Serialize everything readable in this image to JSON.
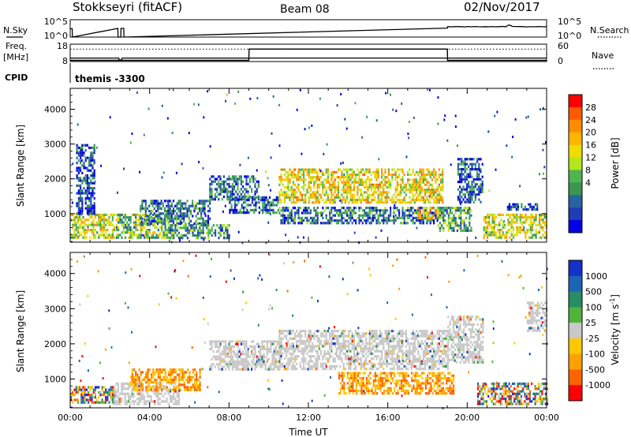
{
  "header": {
    "station": "Stokkseyri (fitACF)",
    "beam": "Beam 08",
    "date": "02/Nov/2017",
    "cpid_label": "CPID",
    "cpid_value": "themis -3300"
  },
  "colors": {
    "ground_scatter": "#c8c8c8",
    "trace": "#000000",
    "frame": "#000000"
  },
  "chart_data": [
    {
      "type": "line",
      "panel": "noise",
      "labels": {
        "left": "N.Sky",
        "right": "N.Search"
      },
      "y_ticks_left": [
        "10^5",
        "10^0"
      ],
      "y_ticks_right": [
        "10^5",
        "10^0"
      ],
      "ylim_log": [
        0,
        5
      ],
      "xlim_hours": [
        0,
        24
      ],
      "series": [
        {
          "key": "nsky",
          "style": "solid",
          "x": [
            0,
            0.1,
            0.11,
            2.4,
            2.41,
            2.55,
            2.56,
            2.7,
            2.71,
            19.0,
            19.01,
            24
          ],
          "y": [
            2.4,
            2.4,
            0.0,
            2.5,
            0.0,
            0.0,
            2.5,
            2.5,
            0.0,
            2.6,
            3.0,
            3.0
          ]
        }
      ]
    },
    {
      "type": "line",
      "panel": "frequency",
      "labels": {
        "left_top": "Freq.",
        "left_unit": "[MHz]",
        "right": "Nave"
      },
      "y_ticks_left": [
        "18",
        "8"
      ],
      "y_ticks_right": [
        "60",
        "0"
      ],
      "ylim": [
        8,
        18
      ],
      "xlim_hours": [
        0,
        24
      ],
      "series": [
        {
          "key": "frequency",
          "style": "solid",
          "x": [
            0,
            2.45,
            2.46,
            2.6,
            2.61,
            24
          ],
          "y": [
            10.0,
            10.0,
            9.0,
            9.0,
            10.0,
            10.0
          ]
        },
        {
          "key": "nave",
          "style": "solid",
          "x": [
            0,
            9.0,
            9.01,
            19.0,
            19.01,
            24
          ],
          "y": [
            8.7,
            8.7,
            15.2,
            15.2,
            8.7,
            8.7
          ]
        },
        {
          "key": "reference",
          "style": "dotted",
          "x": [
            0,
            24
          ],
          "y": [
            15.2,
            15.2
          ]
        }
      ]
    },
    {
      "type": "heatmap",
      "panel": "power",
      "ylabel": "Slant Range [km]",
      "xlim_hours": [
        0,
        24
      ],
      "ylim_km": [
        180,
        4600
      ],
      "y_ticks": [
        "1000",
        "2000",
        "3000",
        "4000"
      ],
      "colorbar": {
        "label": "Power [dB]",
        "ticks": [
          "28",
          "24",
          "20",
          "16",
          "12",
          "8",
          "4"
        ],
        "colors": [
          "#ff0000",
          "#ff5a00",
          "#ff8c00",
          "#ffb400",
          "#f0dc00",
          "#b4e61e",
          "#50b450",
          "#3c9650",
          "#2864a0",
          "#1e3cb4",
          "#0000e6"
        ]
      },
      "regions": [
        {
          "t0": 0.0,
          "t1": 2.2,
          "r0": 300,
          "r1": 1000,
          "level": 0.55
        },
        {
          "t0": 0.3,
          "t1": 1.2,
          "r0": 1000,
          "r1": 3000,
          "level": 0.15
        },
        {
          "t0": 2.3,
          "t1": 5.0,
          "r0": 300,
          "r1": 1000,
          "level": 0.45
        },
        {
          "t0": 3.5,
          "t1": 7.0,
          "r0": 700,
          "r1": 1400,
          "level": 0.25
        },
        {
          "t0": 5.0,
          "t1": 8.0,
          "r0": 300,
          "r1": 700,
          "level": 0.35
        },
        {
          "t0": 7.0,
          "t1": 9.5,
          "r0": 1400,
          "r1": 2100,
          "level": 0.25
        },
        {
          "t0": 8.0,
          "t1": 10.5,
          "r0": 1000,
          "r1": 1500,
          "level": 0.2
        },
        {
          "t0": 10.5,
          "t1": 18.8,
          "r0": 1300,
          "r1": 2300,
          "level": 0.6
        },
        {
          "t0": 10.5,
          "t1": 18.5,
          "r0": 700,
          "r1": 1200,
          "level": 0.25
        },
        {
          "t0": 17.5,
          "t1": 18.7,
          "r0": 900,
          "r1": 1200,
          "level": 0.7
        },
        {
          "t0": 18.5,
          "t1": 20.2,
          "r0": 500,
          "r1": 1200,
          "level": 0.35
        },
        {
          "t0": 19.5,
          "t1": 20.8,
          "r0": 1300,
          "r1": 2600,
          "level": 0.2
        },
        {
          "t0": 20.8,
          "t1": 24.0,
          "r0": 300,
          "r1": 1000,
          "level": 0.55
        },
        {
          "t0": 22.0,
          "t1": 23.5,
          "r0": 1100,
          "r1": 1300,
          "level": 0.15
        }
      ]
    },
    {
      "type": "heatmap",
      "panel": "velocity",
      "ylabel": "Slant Range [km]",
      "xlabel": "Time UT",
      "xlim_hours": [
        0,
        24
      ],
      "ylim_km": [
        180,
        4600
      ],
      "y_ticks": [
        "1000",
        "2000",
        "3000",
        "4000"
      ],
      "x_ticks": [
        "00:00",
        "04:00",
        "08:00",
        "12:00",
        "16:00",
        "20:00",
        "00:00"
      ],
      "colorbar": {
        "label": "Velocity [m s^-1]",
        "ticks": [
          "1000",
          "500",
          "100",
          "25",
          "-25",
          "-100",
          "-500",
          "-1000"
        ],
        "colors": [
          "#1432c8",
          "#1e64b4",
          "#288c64",
          "#50b43c",
          "#c8c8c8",
          "#ffc800",
          "#ffa000",
          "#ff6400",
          "#ff0000"
        ]
      },
      "regions": [
        {
          "t0": 0.0,
          "t1": 2.2,
          "r0": 300,
          "r1": 800,
          "kind": "mixed"
        },
        {
          "t0": 2.2,
          "t1": 5.5,
          "r0": 300,
          "r1": 900,
          "kind": "ground"
        },
        {
          "t0": 3.0,
          "t1": 6.5,
          "r0": 700,
          "r1": 1300,
          "kind": "negative"
        },
        {
          "t0": 7.0,
          "t1": 10.5,
          "r0": 1300,
          "r1": 2100,
          "kind": "ground"
        },
        {
          "t0": 10.5,
          "t1": 19.0,
          "r0": 1300,
          "r1": 2400,
          "kind": "ground"
        },
        {
          "t0": 13.5,
          "t1": 19.3,
          "r0": 600,
          "r1": 1200,
          "kind": "negative"
        },
        {
          "t0": 19.0,
          "t1": 20.8,
          "r0": 1500,
          "r1": 2800,
          "kind": "ground"
        },
        {
          "t0": 20.5,
          "t1": 24.0,
          "r0": 300,
          "r1": 900,
          "kind": "mixed"
        },
        {
          "t0": 23.0,
          "t1": 24.0,
          "r0": 2400,
          "r1": 3200,
          "kind": "ground"
        }
      ]
    }
  ]
}
